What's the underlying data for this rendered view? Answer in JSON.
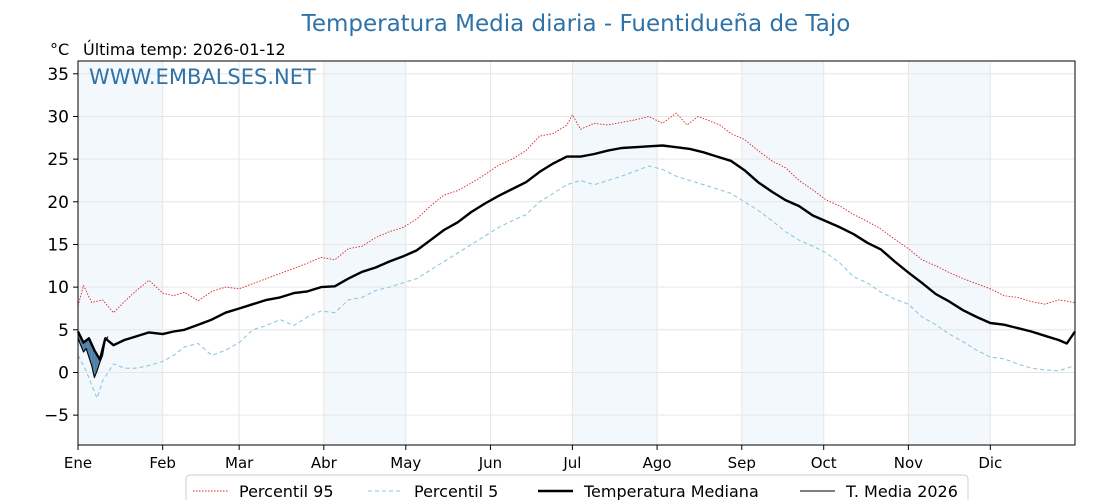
{
  "chart_data": {
    "type": "line",
    "title": "Temperatura Media diaria - Fuentidueña de Tajo",
    "unit_label": "°C",
    "last_temp_label": "Última temp: 2026-01-12",
    "watermark": "WWW.EMBALSES.NET",
    "x_range": [
      1,
      366
    ],
    "ylim": [
      -8.5,
      36.5
    ],
    "yticks": [
      -5,
      0,
      5,
      10,
      15,
      20,
      25,
      30,
      35
    ],
    "months": [
      {
        "label": "Ene",
        "day": 1
      },
      {
        "label": "Feb",
        "day": 32
      },
      {
        "label": "Mar",
        "day": 60
      },
      {
        "label": "Abr",
        "day": 91
      },
      {
        "label": "May",
        "day": 121
      },
      {
        "label": "Jun",
        "day": 152
      },
      {
        "label": "Jul",
        "day": 182
      },
      {
        "label": "Ago",
        "day": 213
      },
      {
        "label": "Sep",
        "day": 244
      },
      {
        "label": "Oct",
        "day": 274
      },
      {
        "label": "Nov",
        "day": 305
      },
      {
        "label": "Dic",
        "day": 335
      }
    ],
    "shaded_months": [
      [
        1,
        32
      ],
      [
        91,
        121
      ],
      [
        182,
        213
      ],
      [
        244,
        274
      ],
      [
        305,
        335
      ]
    ],
    "series": [
      {
        "name": "Percentil 95",
        "color": "#e02020",
        "style": "dotted",
        "points": [
          [
            1,
            7.8
          ],
          [
            3,
            10.2
          ],
          [
            6,
            8.2
          ],
          [
            10,
            8.5
          ],
          [
            14,
            7.0
          ],
          [
            18,
            8.3
          ],
          [
            22,
            9.5
          ],
          [
            27,
            10.8
          ],
          [
            32,
            9.3
          ],
          [
            36,
            9.0
          ],
          [
            40,
            9.4
          ],
          [
            45,
            8.4
          ],
          [
            50,
            9.5
          ],
          [
            55,
            10.0
          ],
          [
            60,
            9.8
          ],
          [
            65,
            10.4
          ],
          [
            70,
            11.0
          ],
          [
            75,
            11.6
          ],
          [
            80,
            12.2
          ],
          [
            85,
            12.8
          ],
          [
            90,
            13.5
          ],
          [
            95,
            13.2
          ],
          [
            100,
            14.5
          ],
          [
            105,
            14.8
          ],
          [
            110,
            15.8
          ],
          [
            115,
            16.5
          ],
          [
            120,
            17.0
          ],
          [
            125,
            18.0
          ],
          [
            130,
            19.5
          ],
          [
            135,
            20.8
          ],
          [
            140,
            21.3
          ],
          [
            145,
            22.2
          ],
          [
            150,
            23.2
          ],
          [
            155,
            24.3
          ],
          [
            160,
            25.0
          ],
          [
            165,
            26.0
          ],
          [
            170,
            27.7
          ],
          [
            175,
            28.0
          ],
          [
            180,
            29.0
          ],
          [
            182,
            30.2
          ],
          [
            185,
            28.5
          ],
          [
            190,
            29.2
          ],
          [
            195,
            29.0
          ],
          [
            200,
            29.3
          ],
          [
            205,
            29.6
          ],
          [
            210,
            30.0
          ],
          [
            215,
            29.2
          ],
          [
            220,
            30.4
          ],
          [
            224,
            29.0
          ],
          [
            228,
            30.0
          ],
          [
            232,
            29.5
          ],
          [
            236,
            29.0
          ],
          [
            240,
            28.0
          ],
          [
            245,
            27.3
          ],
          [
            250,
            26.0
          ],
          [
            255,
            24.8
          ],
          [
            260,
            24.0
          ],
          [
            265,
            22.5
          ],
          [
            270,
            21.4
          ],
          [
            275,
            20.2
          ],
          [
            280,
            19.5
          ],
          [
            285,
            18.5
          ],
          [
            290,
            17.7
          ],
          [
            295,
            16.8
          ],
          [
            300,
            15.6
          ],
          [
            305,
            14.5
          ],
          [
            310,
            13.2
          ],
          [
            315,
            12.5
          ],
          [
            320,
            11.7
          ],
          [
            325,
            11.0
          ],
          [
            330,
            10.4
          ],
          [
            335,
            9.8
          ],
          [
            340,
            9.0
          ],
          [
            345,
            8.8
          ],
          [
            350,
            8.3
          ],
          [
            355,
            8.0
          ],
          [
            360,
            8.5
          ],
          [
            366,
            8.2
          ]
        ]
      },
      {
        "name": "Percentil 5",
        "color": "#8ec8de",
        "style": "dashed",
        "points": [
          [
            1,
            2.0
          ],
          [
            4,
            0.2
          ],
          [
            6,
            -1.5
          ],
          [
            8,
            -3.0
          ],
          [
            10,
            -1.0
          ],
          [
            14,
            1.0
          ],
          [
            18,
            0.5
          ],
          [
            22,
            0.5
          ],
          [
            27,
            0.8
          ],
          [
            32,
            1.3
          ],
          [
            36,
            2.0
          ],
          [
            40,
            3.0
          ],
          [
            45,
            3.4
          ],
          [
            50,
            2.0
          ],
          [
            55,
            2.6
          ],
          [
            60,
            3.5
          ],
          [
            65,
            5.0
          ],
          [
            70,
            5.5
          ],
          [
            75,
            6.2
          ],
          [
            80,
            5.5
          ],
          [
            85,
            6.5
          ],
          [
            90,
            7.2
          ],
          [
            95,
            7.0
          ],
          [
            100,
            8.5
          ],
          [
            105,
            8.8
          ],
          [
            110,
            9.6
          ],
          [
            115,
            10.0
          ],
          [
            120,
            10.5
          ],
          [
            125,
            11.0
          ],
          [
            130,
            12.0
          ],
          [
            135,
            13.0
          ],
          [
            140,
            14.0
          ],
          [
            145,
            15.0
          ],
          [
            150,
            16.0
          ],
          [
            155,
            17.0
          ],
          [
            160,
            17.8
          ],
          [
            165,
            18.5
          ],
          [
            170,
            20.0
          ],
          [
            175,
            21.0
          ],
          [
            180,
            22.0
          ],
          [
            185,
            22.5
          ],
          [
            190,
            22.0
          ],
          [
            195,
            22.5
          ],
          [
            200,
            23.0
          ],
          [
            205,
            23.6
          ],
          [
            210,
            24.2
          ],
          [
            215,
            23.8
          ],
          [
            220,
            23.0
          ],
          [
            225,
            22.5
          ],
          [
            230,
            22.0
          ],
          [
            235,
            21.5
          ],
          [
            240,
            21.0
          ],
          [
            245,
            20.0
          ],
          [
            250,
            19.0
          ],
          [
            255,
            17.8
          ],
          [
            260,
            16.5
          ],
          [
            265,
            15.5
          ],
          [
            270,
            14.8
          ],
          [
            275,
            14.0
          ],
          [
            280,
            12.8
          ],
          [
            285,
            11.2
          ],
          [
            290,
            10.5
          ],
          [
            295,
            9.4
          ],
          [
            300,
            8.6
          ],
          [
            305,
            8.0
          ],
          [
            310,
            6.5
          ],
          [
            315,
            5.6
          ],
          [
            320,
            4.5
          ],
          [
            325,
            3.6
          ],
          [
            330,
            2.6
          ],
          [
            335,
            1.8
          ],
          [
            340,
            1.6
          ],
          [
            345,
            1.0
          ],
          [
            350,
            0.5
          ],
          [
            355,
            0.3
          ],
          [
            360,
            0.2
          ],
          [
            366,
            0.8
          ]
        ]
      },
      {
        "name": "Temperatura Mediana",
        "color": "#000000",
        "style": "thick",
        "points": [
          [
            1,
            4.8
          ],
          [
            3,
            3.5
          ],
          [
            5,
            4.0
          ],
          [
            7,
            2.6
          ],
          [
            9,
            1.5
          ],
          [
            11,
            4.0
          ],
          [
            14,
            3.2
          ],
          [
            18,
            3.8
          ],
          [
            22,
            4.2
          ],
          [
            27,
            4.7
          ],
          [
            32,
            4.5
          ],
          [
            36,
            4.8
          ],
          [
            40,
            5.0
          ],
          [
            45,
            5.6
          ],
          [
            50,
            6.2
          ],
          [
            55,
            7.0
          ],
          [
            60,
            7.5
          ],
          [
            65,
            8.0
          ],
          [
            70,
            8.5
          ],
          [
            75,
            8.8
          ],
          [
            80,
            9.3
          ],
          [
            85,
            9.5
          ],
          [
            90,
            10.0
          ],
          [
            95,
            10.1
          ],
          [
            100,
            11.0
          ],
          [
            105,
            11.8
          ],
          [
            110,
            12.3
          ],
          [
            115,
            13.0
          ],
          [
            120,
            13.6
          ],
          [
            125,
            14.3
          ],
          [
            130,
            15.5
          ],
          [
            135,
            16.7
          ],
          [
            140,
            17.6
          ],
          [
            145,
            18.8
          ],
          [
            150,
            19.8
          ],
          [
            155,
            20.7
          ],
          [
            160,
            21.5
          ],
          [
            165,
            22.3
          ],
          [
            170,
            23.5
          ],
          [
            175,
            24.5
          ],
          [
            180,
            25.3
          ],
          [
            185,
            25.3
          ],
          [
            190,
            25.6
          ],
          [
            195,
            26.0
          ],
          [
            200,
            26.3
          ],
          [
            205,
            26.4
          ],
          [
            210,
            26.5
          ],
          [
            215,
            26.6
          ],
          [
            220,
            26.4
          ],
          [
            225,
            26.2
          ],
          [
            230,
            25.8
          ],
          [
            235,
            25.3
          ],
          [
            240,
            24.8
          ],
          [
            245,
            23.7
          ],
          [
            250,
            22.3
          ],
          [
            255,
            21.2
          ],
          [
            260,
            20.2
          ],
          [
            265,
            19.5
          ],
          [
            270,
            18.4
          ],
          [
            275,
            17.7
          ],
          [
            280,
            17.0
          ],
          [
            285,
            16.2
          ],
          [
            290,
            15.2
          ],
          [
            295,
            14.4
          ],
          [
            300,
            13.0
          ],
          [
            305,
            11.7
          ],
          [
            310,
            10.5
          ],
          [
            315,
            9.2
          ],
          [
            320,
            8.3
          ],
          [
            325,
            7.3
          ],
          [
            330,
            6.5
          ],
          [
            335,
            5.8
          ],
          [
            340,
            5.6
          ],
          [
            345,
            5.2
          ],
          [
            350,
            4.8
          ],
          [
            355,
            4.3
          ],
          [
            360,
            3.8
          ],
          [
            363,
            3.4
          ],
          [
            366,
            4.8
          ]
        ]
      },
      {
        "name": "T. Media 2026",
        "color": "#000000",
        "style": "thin",
        "points": [
          [
            1,
            4.0
          ],
          [
            2,
            3.2
          ],
          [
            3,
            2.4
          ],
          [
            4,
            2.8
          ],
          [
            5,
            1.8
          ],
          [
            6,
            0.8
          ],
          [
            7,
            -0.6
          ],
          [
            8,
            0.2
          ],
          [
            9,
            1.2
          ],
          [
            10,
            2.0
          ],
          [
            11,
            3.8
          ],
          [
            12,
            4.2
          ]
        ]
      }
    ]
  }
}
